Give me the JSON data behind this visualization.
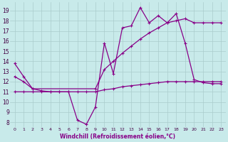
{
  "background_color": "#c8eaea",
  "line_color": "#880088",
  "grid_color": "#aacccc",
  "xlabel": "Windchill (Refroidissement éolien,°C)",
  "yticks": [
    8,
    9,
    10,
    11,
    12,
    13,
    14,
    15,
    16,
    17,
    18,
    19
  ],
  "xtick_labels": [
    "0",
    "1",
    "2",
    "3",
    "4",
    "5",
    "6",
    "7",
    "8",
    "9",
    "10",
    "11",
    "12",
    "13",
    "14",
    "15",
    "16",
    "17",
    "18",
    "19",
    "20",
    "21",
    "22",
    "23"
  ],
  "ylim": [
    7.5,
    19.8
  ],
  "xlim": [
    -0.5,
    23.5
  ],
  "line1_x": [
    0,
    1,
    2,
    3,
    4,
    5,
    6,
    7,
    8,
    9,
    10,
    11,
    12,
    13,
    14,
    15,
    16,
    17,
    18,
    19,
    20,
    21,
    22,
    23
  ],
  "line1_y": [
    13.8,
    12.5,
    11.3,
    11.1,
    11.0,
    11.0,
    11.0,
    8.2,
    7.8,
    9.5,
    15.8,
    12.8,
    17.3,
    17.5,
    19.3,
    17.8,
    18.5,
    17.8,
    18.7,
    15.8,
    12.2,
    11.9,
    11.8,
    11.8
  ],
  "line2_x": [
    0,
    1,
    2,
    3,
    4,
    5,
    6,
    7,
    8,
    9,
    10,
    11,
    12,
    13,
    14,
    15,
    16,
    17,
    18,
    19,
    20,
    21,
    22,
    23
  ],
  "line2_y": [
    11.0,
    11.0,
    11.0,
    11.0,
    11.0,
    11.0,
    11.0,
    11.0,
    11.0,
    11.0,
    11.2,
    11.3,
    11.5,
    11.6,
    11.7,
    11.8,
    11.9,
    12.0,
    12.0,
    12.0,
    12.0,
    12.0,
    12.0,
    12.0
  ],
  "line3_x": [
    0,
    1,
    2,
    9,
    10,
    11,
    12,
    13,
    14,
    15,
    16,
    17,
    18,
    19,
    20,
    21,
    22,
    23
  ],
  "line3_y": [
    12.5,
    12.0,
    11.3,
    11.3,
    13.2,
    14.0,
    14.8,
    15.5,
    16.2,
    16.8,
    17.3,
    17.8,
    18.0,
    18.2,
    17.8,
    17.8,
    17.8,
    17.8
  ]
}
